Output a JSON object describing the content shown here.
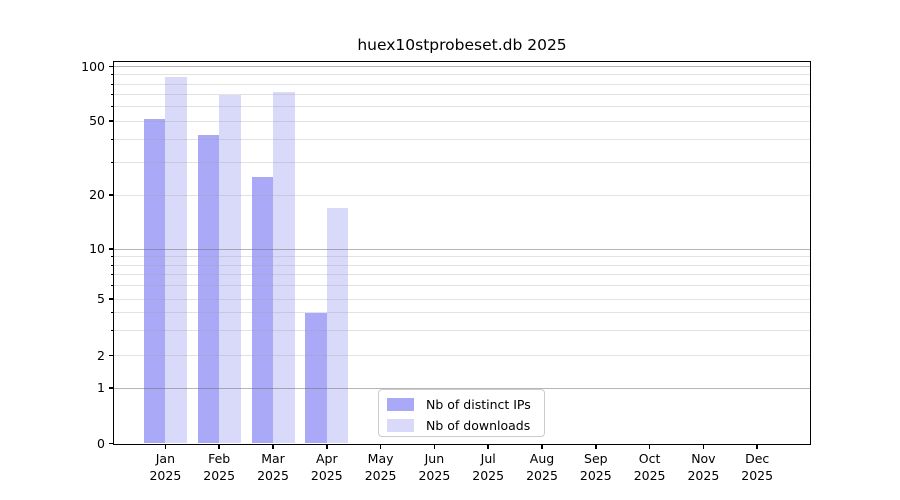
{
  "title": "huex10stprobeset.db 2025",
  "chart_data": {
    "type": "bar",
    "title": "huex10stprobeset.db 2025",
    "categories": [
      "Jan 2025",
      "Feb 2025",
      "Mar 2025",
      "Apr 2025",
      "May 2025",
      "Jun 2025",
      "Jul 2025",
      "Aug 2025",
      "Sep 2025",
      "Oct 2025",
      "Nov 2025",
      "Dec 2025"
    ],
    "series": [
      {
        "name": "Nb of distinct IPs",
        "color": "#a9a9f7",
        "values": [
          51,
          42,
          25,
          4,
          0,
          0,
          0,
          0,
          0,
          0,
          0,
          0
        ]
      },
      {
        "name": "Nb of downloads",
        "color": "#d9d9f9",
        "values": [
          88,
          70,
          72,
          17,
          0,
          0,
          0,
          0,
          0,
          0,
          0,
          0
        ]
      }
    ],
    "yscale": "symlog",
    "ylim": [
      0,
      100
    ],
    "yticks": [
      0,
      1,
      2,
      5,
      10,
      20,
      50,
      100
    ],
    "yticks_minor": [
      3,
      4,
      6,
      7,
      8,
      9,
      30,
      40,
      60,
      70,
      80,
      90
    ],
    "ymajor_gridlines": [
      1,
      10,
      100
    ],
    "grid": "horizontal, drawn over bars",
    "legend_position": "lower center inside plot",
    "xlabel": "",
    "ylabel": ""
  },
  "legend": {
    "items": [
      {
        "label": "Nb of distinct IPs"
      },
      {
        "label": "Nb of downloads"
      }
    ]
  }
}
